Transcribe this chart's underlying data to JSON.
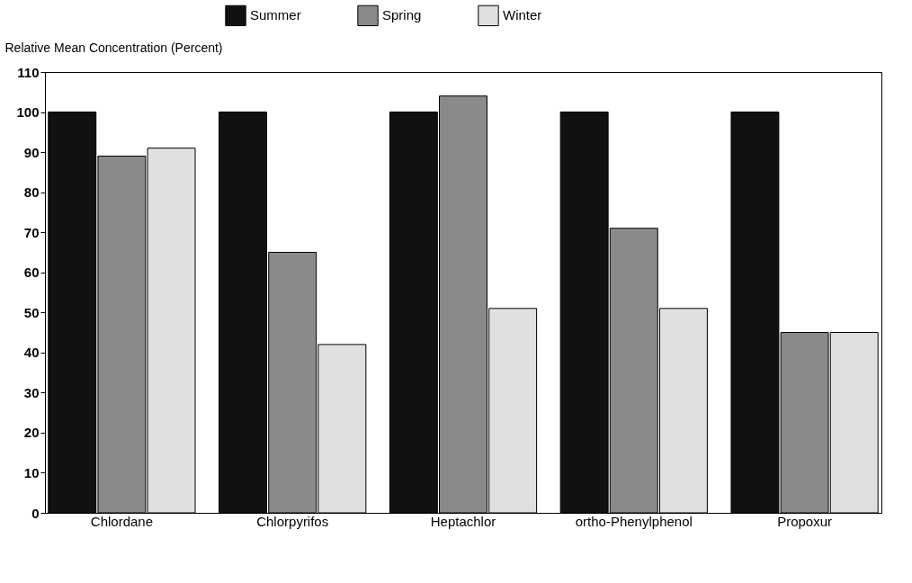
{
  "chart_data": {
    "type": "bar",
    "ylabel": "Relative Mean Concentration (Percent)",
    "categories": [
      "Chlordane",
      "Chlorpyrifos",
      "Heptachlor",
      "ortho-Phenylphenol",
      "Propoxur"
    ],
    "series": [
      {
        "name": "Summer",
        "color": "#111111",
        "values": [
          100,
          100,
          100,
          100,
          100
        ]
      },
      {
        "name": "Spring",
        "color": "#8a8a8a",
        "values": [
          89,
          65,
          104,
          71,
          45
        ]
      },
      {
        "name": "Winter",
        "color": "#e0e0e0",
        "values": [
          91,
          42,
          51,
          51,
          45
        ]
      }
    ],
    "ylim": [
      0,
      110
    ],
    "yticks": [
      0,
      10,
      20,
      30,
      40,
      50,
      60,
      70,
      80,
      90,
      100,
      110
    ],
    "grid": false,
    "legend": "top"
  }
}
